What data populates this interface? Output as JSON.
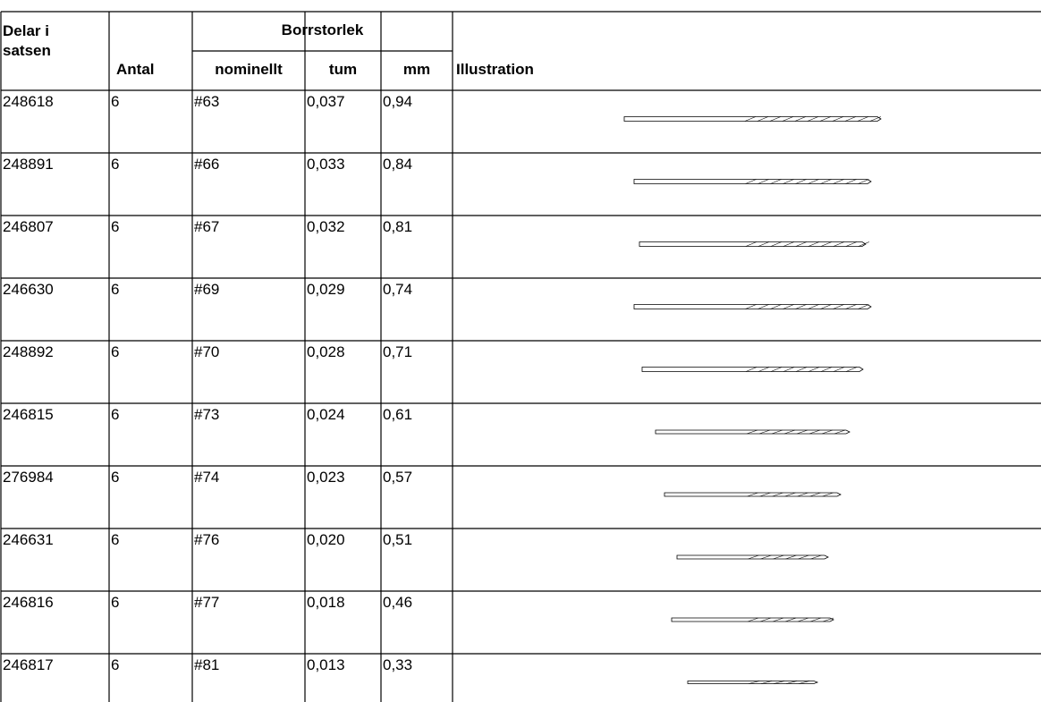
{
  "header": {
    "parts": "Delar i satsen",
    "quantity": "Antal",
    "drill_size": "Borrstorlek",
    "nominal": "nominellt",
    "inch": "tum",
    "mm": "mm",
    "illustration": "Illustration"
  },
  "table": {
    "rows": [
      [
        "248618",
        "6",
        "#63",
        "0,037",
        "0,94"
      ],
      [
        "248891",
        "6",
        "#66",
        "0,033",
        "0,84"
      ],
      [
        "246807",
        "6",
        "#67",
        "0,032",
        "0,81"
      ],
      [
        "246630",
        "6",
        "#69",
        "0,029",
        "0,74"
      ],
      [
        "248892",
        "6",
        "#70",
        "0,028",
        "0,71"
      ],
      [
        "246815",
        "6",
        "#73",
        "0,024",
        "0,61"
      ],
      [
        "276984",
        "6",
        "#74",
        "0,023",
        "0,57"
      ],
      [
        "246631",
        "6",
        "#76",
        "0,020",
        "0,51"
      ],
      [
        "246816",
        "6",
        "#77",
        "0,018",
        "0,46"
      ],
      [
        "246817",
        "6",
        "#81",
        "0,013",
        "0,33"
      ]
    ]
  }
}
